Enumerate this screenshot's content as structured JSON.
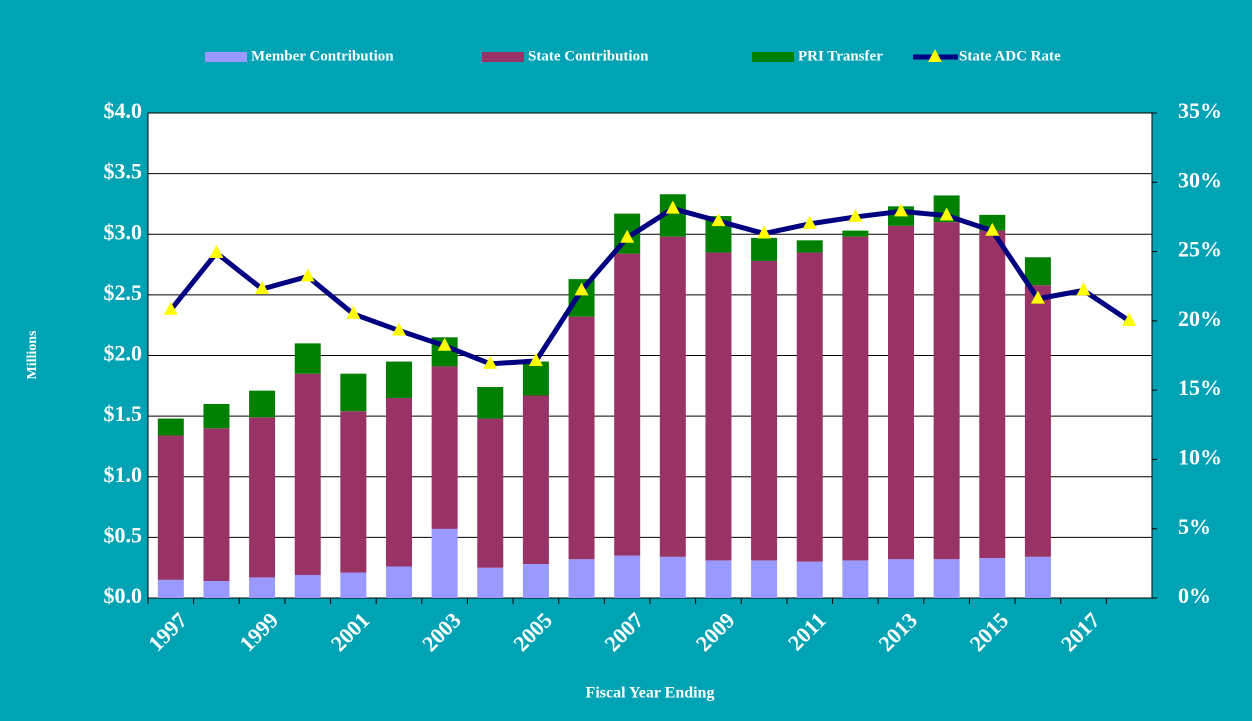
{
  "chart_data": {
    "type": "bar",
    "categories": [
      "1997",
      null,
      "1999",
      null,
      "2001",
      null,
      "2003",
      null,
      "2005",
      null,
      "2007",
      null,
      "2009",
      null,
      "2011",
      null,
      "2013",
      null,
      "2015",
      null,
      "2017",
      null
    ],
    "series": [
      {
        "name": "Member Contribution",
        "type": "bar",
        "color": "#9999ff",
        "values": [
          0.15,
          0.14,
          0.17,
          0.19,
          0.21,
          0.26,
          0.57,
          0.25,
          0.28,
          0.32,
          0.35,
          0.34,
          0.31,
          0.31,
          0.3,
          0.31,
          0.32,
          0.32,
          0.33,
          0.34,
          null,
          null
        ]
      },
      {
        "name": "State Contribution",
        "type": "bar",
        "color": "#993366",
        "values": [
          1.19,
          1.26,
          1.32,
          1.66,
          1.33,
          1.39,
          1.34,
          1.23,
          1.39,
          2.0,
          2.49,
          2.64,
          2.54,
          2.47,
          2.55,
          2.67,
          2.75,
          2.78,
          2.7,
          2.24,
          null,
          null
        ]
      },
      {
        "name": "PRI Transfer",
        "type": "bar",
        "color": "#008000",
        "values": [
          0.14,
          0.2,
          0.22,
          0.25,
          0.31,
          0.3,
          0.24,
          0.26,
          0.28,
          0.31,
          0.33,
          0.35,
          0.3,
          0.19,
          0.1,
          0.05,
          0.16,
          0.22,
          0.13,
          0.23,
          null,
          null
        ]
      },
      {
        "name": "State ADC Rate",
        "type": "line",
        "axis": "y2",
        "color": "#000080",
        "marker_color": "#ffff00",
        "values": [
          20.8,
          24.9,
          22.3,
          23.2,
          20.5,
          19.3,
          18.2,
          16.9,
          17.1,
          22.2,
          26.0,
          28.1,
          27.2,
          26.3,
          27.0,
          27.5,
          27.9,
          27.6,
          26.5,
          21.6,
          22.2,
          20.0
        ]
      }
    ],
    "stacked": true,
    "ylabel": "Millions",
    "xlabel": "Fiscal Year Ending",
    "ylim": [
      0,
      4
    ],
    "yticks": [
      {
        "value": 0,
        "label": "$0.0"
      },
      {
        "value": 0.5,
        "label": "$0.5"
      },
      {
        "value": 1,
        "label": "$1.0"
      },
      {
        "value": 1.5,
        "label": "$1.5"
      },
      {
        "value": 2,
        "label": "$2.0"
      },
      {
        "value": 2.5,
        "label": "$2.5"
      },
      {
        "value": 3,
        "label": "$3.0"
      },
      {
        "value": 3.5,
        "label": "$3.5"
      },
      {
        "value": 4,
        "label": "$4.0"
      }
    ],
    "y2lim": [
      0,
      35
    ],
    "y2ticks": [
      {
        "value": 0,
        "label": "0%"
      },
      {
        "value": 5,
        "label": "5%"
      },
      {
        "value": 10,
        "label": "10%"
      },
      {
        "value": 15,
        "label": "15%"
      },
      {
        "value": 20,
        "label": "20%"
      },
      {
        "value": 25,
        "label": "25%"
      },
      {
        "value": 30,
        "label": "30%"
      },
      {
        "value": 35,
        "label": "35%"
      }
    ],
    "grid": true,
    "legend": "top"
  }
}
